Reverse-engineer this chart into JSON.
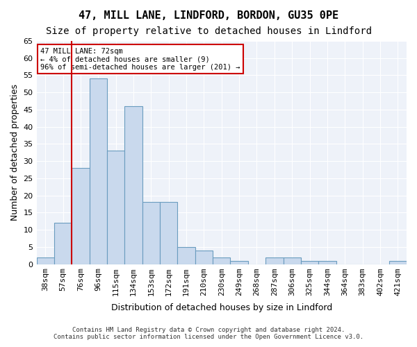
{
  "title": "47, MILL LANE, LINDFORD, BORDON, GU35 0PE",
  "subtitle": "Size of property relative to detached houses in Lindford",
  "xlabel": "Distribution of detached houses by size in Lindford",
  "ylabel": "Number of detached properties",
  "categories": [
    "38sqm",
    "57sqm",
    "76sqm",
    "96sqm",
    "115sqm",
    "134sqm",
    "153sqm",
    "172sqm",
    "191sqm",
    "210sqm",
    "230sqm",
    "249sqm",
    "268sqm",
    "287sqm",
    "306sqm",
    "325sqm",
    "344sqm",
    "364sqm",
    "383sqm",
    "402sqm",
    "421sqm"
  ],
  "values": [
    2,
    12,
    28,
    54,
    33,
    46,
    18,
    18,
    5,
    4,
    2,
    1,
    0,
    2,
    2,
    1,
    1,
    0,
    0,
    0,
    1
  ],
  "bar_color": "#c9d9ed",
  "bar_edge_color": "#6a9cbf",
  "vline_x": 1,
  "vline_color": "#cc0000",
  "annotation_text": "47 MILL LANE: 72sqm\n← 4% of detached houses are smaller (9)\n96% of semi-detached houses are larger (201) →",
  "annotation_box_color": "#ffffff",
  "annotation_box_edge": "#cc0000",
  "ylim": [
    0,
    65
  ],
  "yticks": [
    0,
    5,
    10,
    15,
    20,
    25,
    30,
    35,
    40,
    45,
    50,
    55,
    60,
    65
  ],
  "bg_color": "#eef2f9",
  "footer1": "Contains HM Land Registry data © Crown copyright and database right 2024.",
  "footer2": "Contains public sector information licensed under the Open Government Licence v3.0.",
  "title_fontsize": 11,
  "subtitle_fontsize": 10,
  "axis_label_fontsize": 9,
  "tick_fontsize": 8
}
